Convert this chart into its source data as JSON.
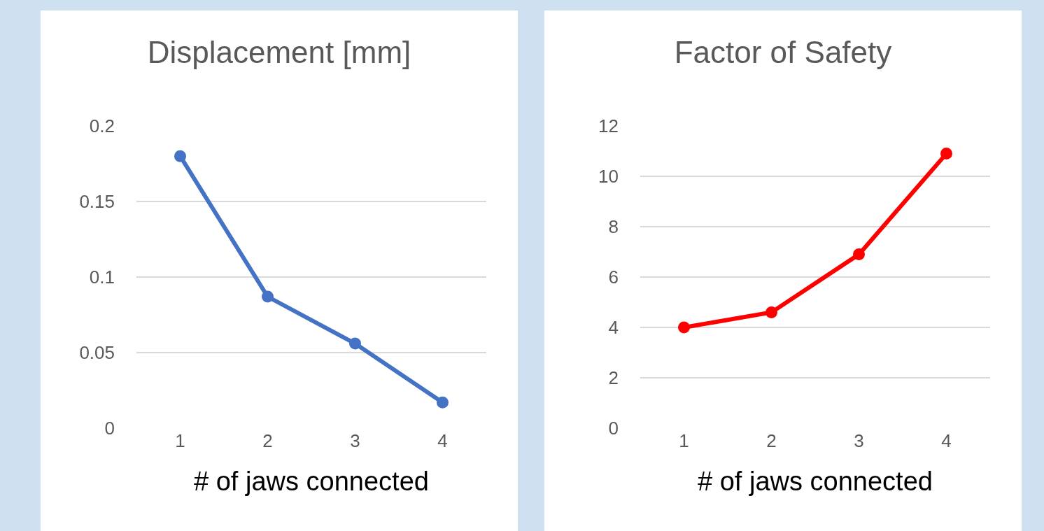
{
  "chart_data": [
    {
      "type": "line",
      "title": "Displacement [mm]",
      "xlabel": "# of jaws connected",
      "categories": [
        "1",
        "2",
        "3",
        "4"
      ],
      "series": [
        {
          "color": "#4472c4",
          "values": [
            0.18,
            0.087,
            0.056,
            0.017
          ]
        }
      ],
      "ylim": [
        0,
        0.2
      ],
      "yticks": [
        0,
        0.05,
        0.1,
        0.15,
        0.2
      ],
      "grid": "y",
      "marker": "circle",
      "line_style": "solid",
      "legend": false
    },
    {
      "type": "line",
      "title": "Factor of Safety",
      "xlabel": "# of jaws connected",
      "categories": [
        "1",
        "2",
        "3",
        "4"
      ],
      "series": [
        {
          "color": "#ff0000",
          "values": [
            4,
            4.6,
            6.9,
            10.9
          ]
        }
      ],
      "ylim": [
        0,
        12
      ],
      "yticks": [
        0,
        2,
        4,
        6,
        8,
        10,
        12
      ],
      "grid": "y",
      "marker": "circle",
      "line_style": "solid",
      "legend": false
    }
  ]
}
